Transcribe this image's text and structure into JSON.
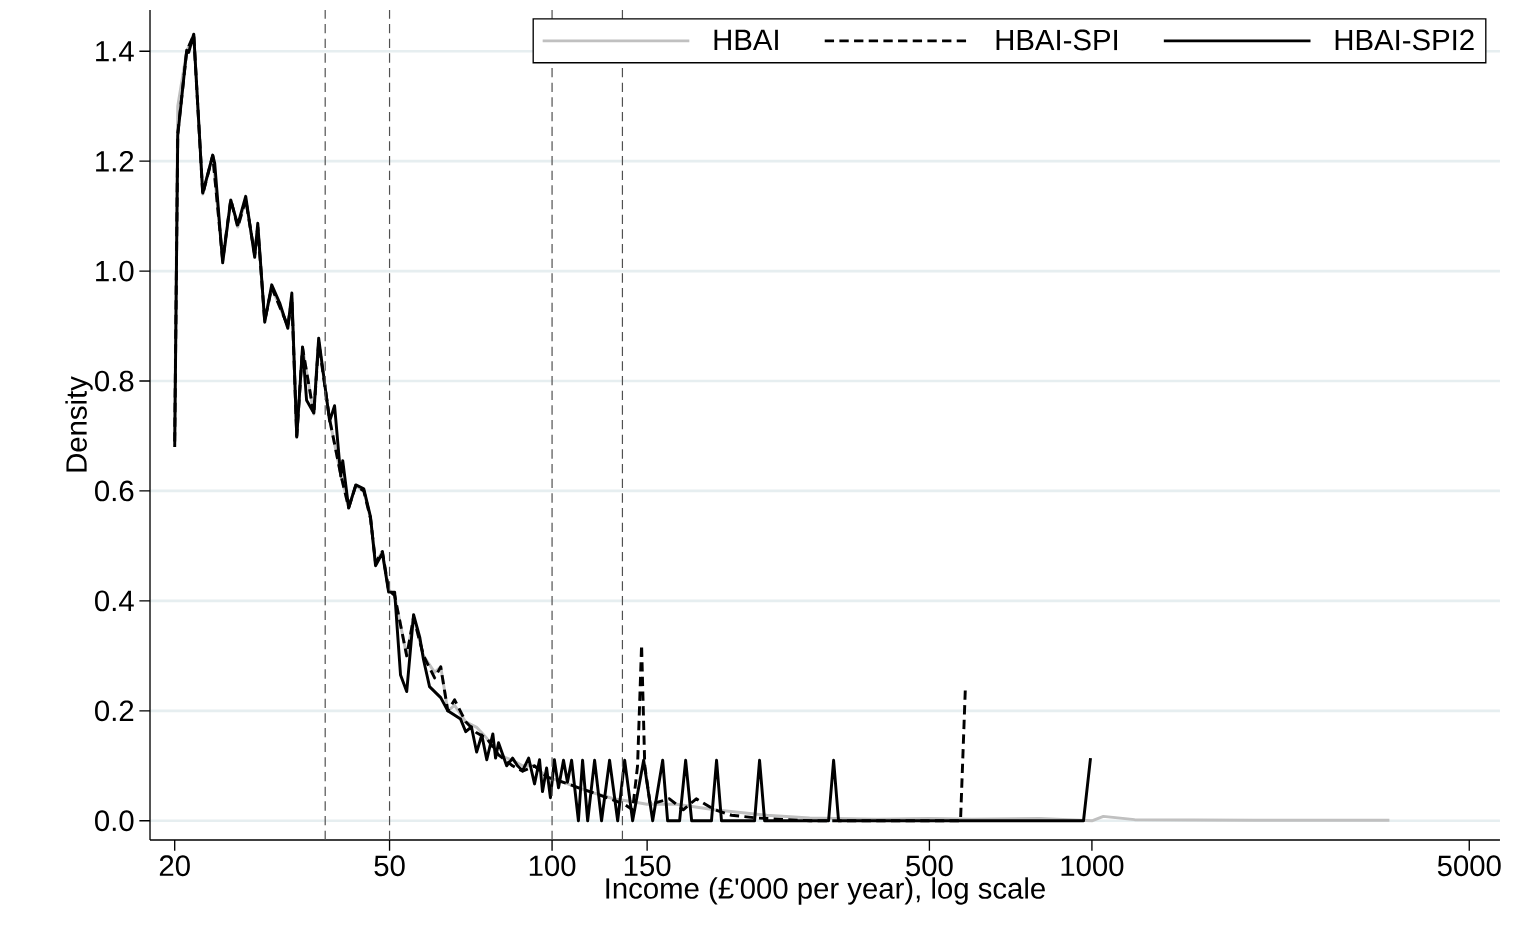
{
  "chart_data": {
    "type": "line",
    "xlabel": "Income (£'000 per year), log scale",
    "ylabel": "Density",
    "log": "x",
    "grid": "y",
    "legend": "top right",
    "xlim": [
      18,
      5700
    ],
    "ylim": [
      -0.035,
      1.475
    ],
    "xticks": [
      20,
      50,
      100,
      150,
      500,
      1000,
      5000
    ],
    "yticks": [
      {
        "value": 0,
        "label": "0.0"
      },
      0.2,
      0.4,
      0.6,
      0.8,
      {
        "value": 1,
        "label": "1.0"
      },
      1.2,
      1.4
    ],
    "ref_lines": [
      {
        "axis": "x",
        "value": 38,
        "line_style": "dashed",
        "color": "#505050"
      },
      {
        "axis": "x",
        "value": 50,
        "line_style": "dashed",
        "color": "#505050"
      },
      {
        "axis": "x",
        "value": 100,
        "line_style": "dashed",
        "color": "#505050"
      },
      {
        "axis": "x",
        "value": 135,
        "line_style": "dashed",
        "color": "#505050"
      }
    ],
    "series": [
      {
        "name": "HBAI",
        "color": "#c0c0c0",
        "line_style": "solid",
        "x": [
          20,
          20.26,
          21.05,
          21.69,
          22.54,
          23.52,
          24.54,
          25.4,
          26.17,
          27.07,
          28.13,
          28.5,
          29.36,
          30.25,
          32.4,
          32.96,
          33.66,
          34.5,
          36.2,
          36.96,
          38.73,
          40.6,
          42.0,
          43.3,
          44.8,
          46.1,
          47.1,
          48.5,
          49.8,
          51.1,
          53.8,
          55.4,
          57.8,
          60.6,
          62.2,
          64.1,
          66,
          69.2,
          72.5,
          75.7,
          79.6,
          84.5,
          88.2,
          92.8,
          97.7,
          105,
          112,
          120,
          130,
          140,
          150,
          170,
          200,
          250,
          300,
          400,
          500,
          600,
          800,
          1000,
          1050,
          1200,
          2000,
          3557
        ],
        "values": [
          0.7,
          1.3,
          1.4,
          1.43,
          1.14,
          1.21,
          1.02,
          1.13,
          1.08,
          1.13,
          1.03,
          1.08,
          0.91,
          0.97,
          0.9,
          0.95,
          0.7,
          0.86,
          0.74,
          0.87,
          0.73,
          0.63,
          0.57,
          0.61,
          0.6,
          0.55,
          0.47,
          0.49,
          0.42,
          0.41,
          0.3,
          0.37,
          0.3,
          0.27,
          0.28,
          0.2,
          0.21,
          0.18,
          0.17,
          0.15,
          0.12,
          0.11,
          0.1,
          0.1,
          0.08,
          0.07,
          0.06,
          0.05,
          0.04,
          0.035,
          0.03,
          0.03,
          0.02,
          0.01,
          0.005,
          0.003,
          0.004,
          0.003,
          0.004,
          0.0,
          0.008,
          0.002,
          0.001,
          0.001
        ]
      },
      {
        "name": "HBAI-SPI",
        "color": "#000000",
        "line_style": "dashed",
        "x": [
          20,
          20.26,
          21.05,
          21.69,
          22.54,
          23.52,
          24.54,
          25.4,
          26.17,
          27.07,
          28.13,
          28.5,
          29.36,
          30.25,
          32.4,
          32.96,
          33.66,
          34.5,
          36.2,
          36.96,
          38.73,
          40.6,
          42.0,
          43.3,
          44.8,
          46.1,
          47.1,
          48.5,
          49.8,
          51.1,
          53.8,
          55.4,
          57.8,
          60.6,
          62.2,
          64.1,
          66,
          69.2,
          72.5,
          75.7,
          79.6,
          84.5,
          88.2,
          92.8,
          97.7,
          105,
          112,
          120,
          128,
          136,
          141,
          144,
          146.5,
          148.5,
          152,
          165,
          175,
          185,
          200,
          215,
          240,
          300,
          571,
          583
        ],
        "values": [
          0.69,
          1.25,
          1.4,
          1.43,
          1.14,
          1.21,
          1.02,
          1.13,
          1.08,
          1.13,
          1.03,
          1.08,
          0.91,
          0.97,
          0.9,
          0.95,
          0.7,
          0.86,
          0.74,
          0.87,
          0.73,
          0.63,
          0.57,
          0.61,
          0.6,
          0.55,
          0.47,
          0.49,
          0.42,
          0.41,
          0.3,
          0.37,
          0.3,
          0.26,
          0.28,
          0.2,
          0.22,
          0.18,
          0.16,
          0.15,
          0.12,
          0.1,
          0.09,
          0.1,
          0.08,
          0.07,
          0.06,
          0.05,
          0.04,
          0.03,
          0.02,
          0.1,
          0.32,
          0.1,
          0.03,
          0.04,
          0.02,
          0.04,
          0.02,
          0.01,
          0.005,
          0.0,
          0.0,
          0.244
        ]
      },
      {
        "name": "HBAI-SPI2",
        "color": "#000000",
        "line_style": "solid",
        "x": [
          20,
          20.26,
          21.05,
          21.23,
          21.69,
          22.54,
          23.52,
          23.72,
          24.54,
          25.4,
          26.17,
          27.07,
          28.13,
          28.5,
          29.36,
          30.25,
          31.3,
          32.4,
          32.96,
          33.66,
          34.5,
          35.1,
          36.2,
          36.96,
          38.73,
          39.56,
          40.6,
          40.95,
          42.0,
          43.3,
          44.8,
          46.1,
          47.1,
          48.5,
          49.8,
          51.1,
          52.4,
          53.8,
          55.4,
          56.9,
          57.8,
          59.3,
          60.6,
          62.2,
          64.1,
          67.7,
          69.2,
          70.9,
          72.5,
          74.1,
          75.7,
          77.7,
          78.6,
          79.6,
          82.4,
          84.5,
          86.3,
          88.2,
          90.5,
          92.8,
          94.8,
          96.0,
          97.7,
          99.3,
          101.0,
          102.8,
          105.0,
          106.8,
          108.7,
          111.9,
          113.9,
          116.4,
          119.9,
          123.5,
          127.8,
          132.3,
          136.3,
          141.0,
          147.8,
          153.6,
          160.3,
          163.7,
          172.3,
          176.8,
          181.4,
          197.4,
          201.7,
          206,
          237.2,
          242.3,
          247.6,
          325.2,
          332.3,
          339.4,
          964.8,
          994
        ],
        "values": [
          0.68,
          1.247,
          1.402,
          1.398,
          1.431,
          1.142,
          1.211,
          1.196,
          1.015,
          1.129,
          1.084,
          1.136,
          1.025,
          1.087,
          0.907,
          0.975,
          0.942,
          0.896,
          0.96,
          0.698,
          0.862,
          0.765,
          0.742,
          0.878,
          0.727,
          0.755,
          0.627,
          0.655,
          0.569,
          0.611,
          0.604,
          0.553,
          0.464,
          0.487,
          0.416,
          0.416,
          0.265,
          0.235,
          0.375,
          0.333,
          0.293,
          0.244,
          0.235,
          0.224,
          0.2,
          0.185,
          0.162,
          0.171,
          0.125,
          0.156,
          0.111,
          0.158,
          0.114,
          0.142,
          0.1,
          0.114,
          0.1,
          0.091,
          0.114,
          0.067,
          0.111,
          0.053,
          0.096,
          0.042,
          0.111,
          0.06,
          0.11,
          0.07,
          0.11,
          0,
          0.11,
          0,
          0.11,
          0,
          0.11,
          0,
          0.11,
          0,
          0.11,
          0,
          0.11,
          0,
          0,
          0.11,
          0,
          0,
          0.11,
          0,
          0,
          0.11,
          0,
          0,
          0.11,
          0,
          0,
          0.114
        ]
      }
    ]
  }
}
